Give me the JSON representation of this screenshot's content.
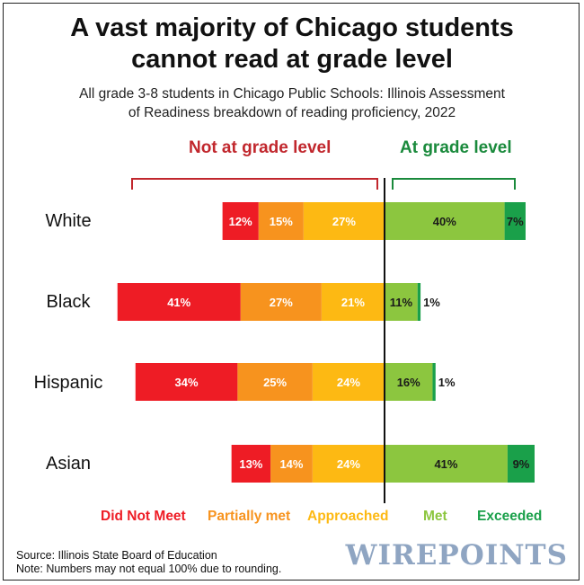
{
  "title_line1": "A vast majority of Chicago students",
  "title_line2": "cannot read at grade level",
  "subtitle_line1": "All grade 3-8 students in Chicago Public Schools: Illinois Assessment",
  "subtitle_line2": "of Readiness breakdown of reading proficiency, 2022",
  "group_labels": {
    "not_at": "Not at grade level",
    "at": "At grade level"
  },
  "colors": {
    "did_not_meet": "#ee1c25",
    "partially_met": "#f7931e",
    "approached": "#fdb913",
    "met": "#8cc63f",
    "exceeded": "#1aa04a",
    "not_at_label": "#c1272d",
    "at_label": "#1a8a3c"
  },
  "chart_data": {
    "type": "bar",
    "orientation": "horizontal",
    "stacking": "diverging",
    "categories": [
      "White",
      "Black",
      "Hispanic",
      "Asian"
    ],
    "series": [
      {
        "name": "Did Not Meet",
        "side": "left",
        "values": [
          12,
          41,
          34,
          13
        ],
        "labels": [
          "12%",
          "41%",
          "34%",
          "13%"
        ]
      },
      {
        "name": "Partially met",
        "side": "left",
        "values": [
          15,
          27,
          25,
          14
        ],
        "labels": [
          "15%",
          "27%",
          "25%",
          "14%"
        ]
      },
      {
        "name": "Approached",
        "side": "left",
        "values": [
          27,
          21,
          24,
          24
        ],
        "labels": [
          "27%",
          "21%",
          "24%",
          "24%"
        ]
      },
      {
        "name": "Met",
        "side": "right",
        "values": [
          40,
          11,
          16,
          41
        ],
        "labels": [
          "40%",
          "11%",
          "16%",
          "41%"
        ]
      },
      {
        "name": "Exceeded",
        "side": "right",
        "values": [
          7,
          1,
          1,
          9
        ],
        "labels": [
          "7%",
          "1%",
          "1%",
          "9%"
        ]
      }
    ]
  },
  "legend": [
    "Did Not Meet",
    "Partially met",
    "Approached",
    "Met",
    "Exceeded"
  ],
  "footer": {
    "source": "Source: Illinois State Board of Education",
    "note": "Note: Numbers may not equal 100% due to rounding."
  },
  "brand": "WIREPOINTS"
}
